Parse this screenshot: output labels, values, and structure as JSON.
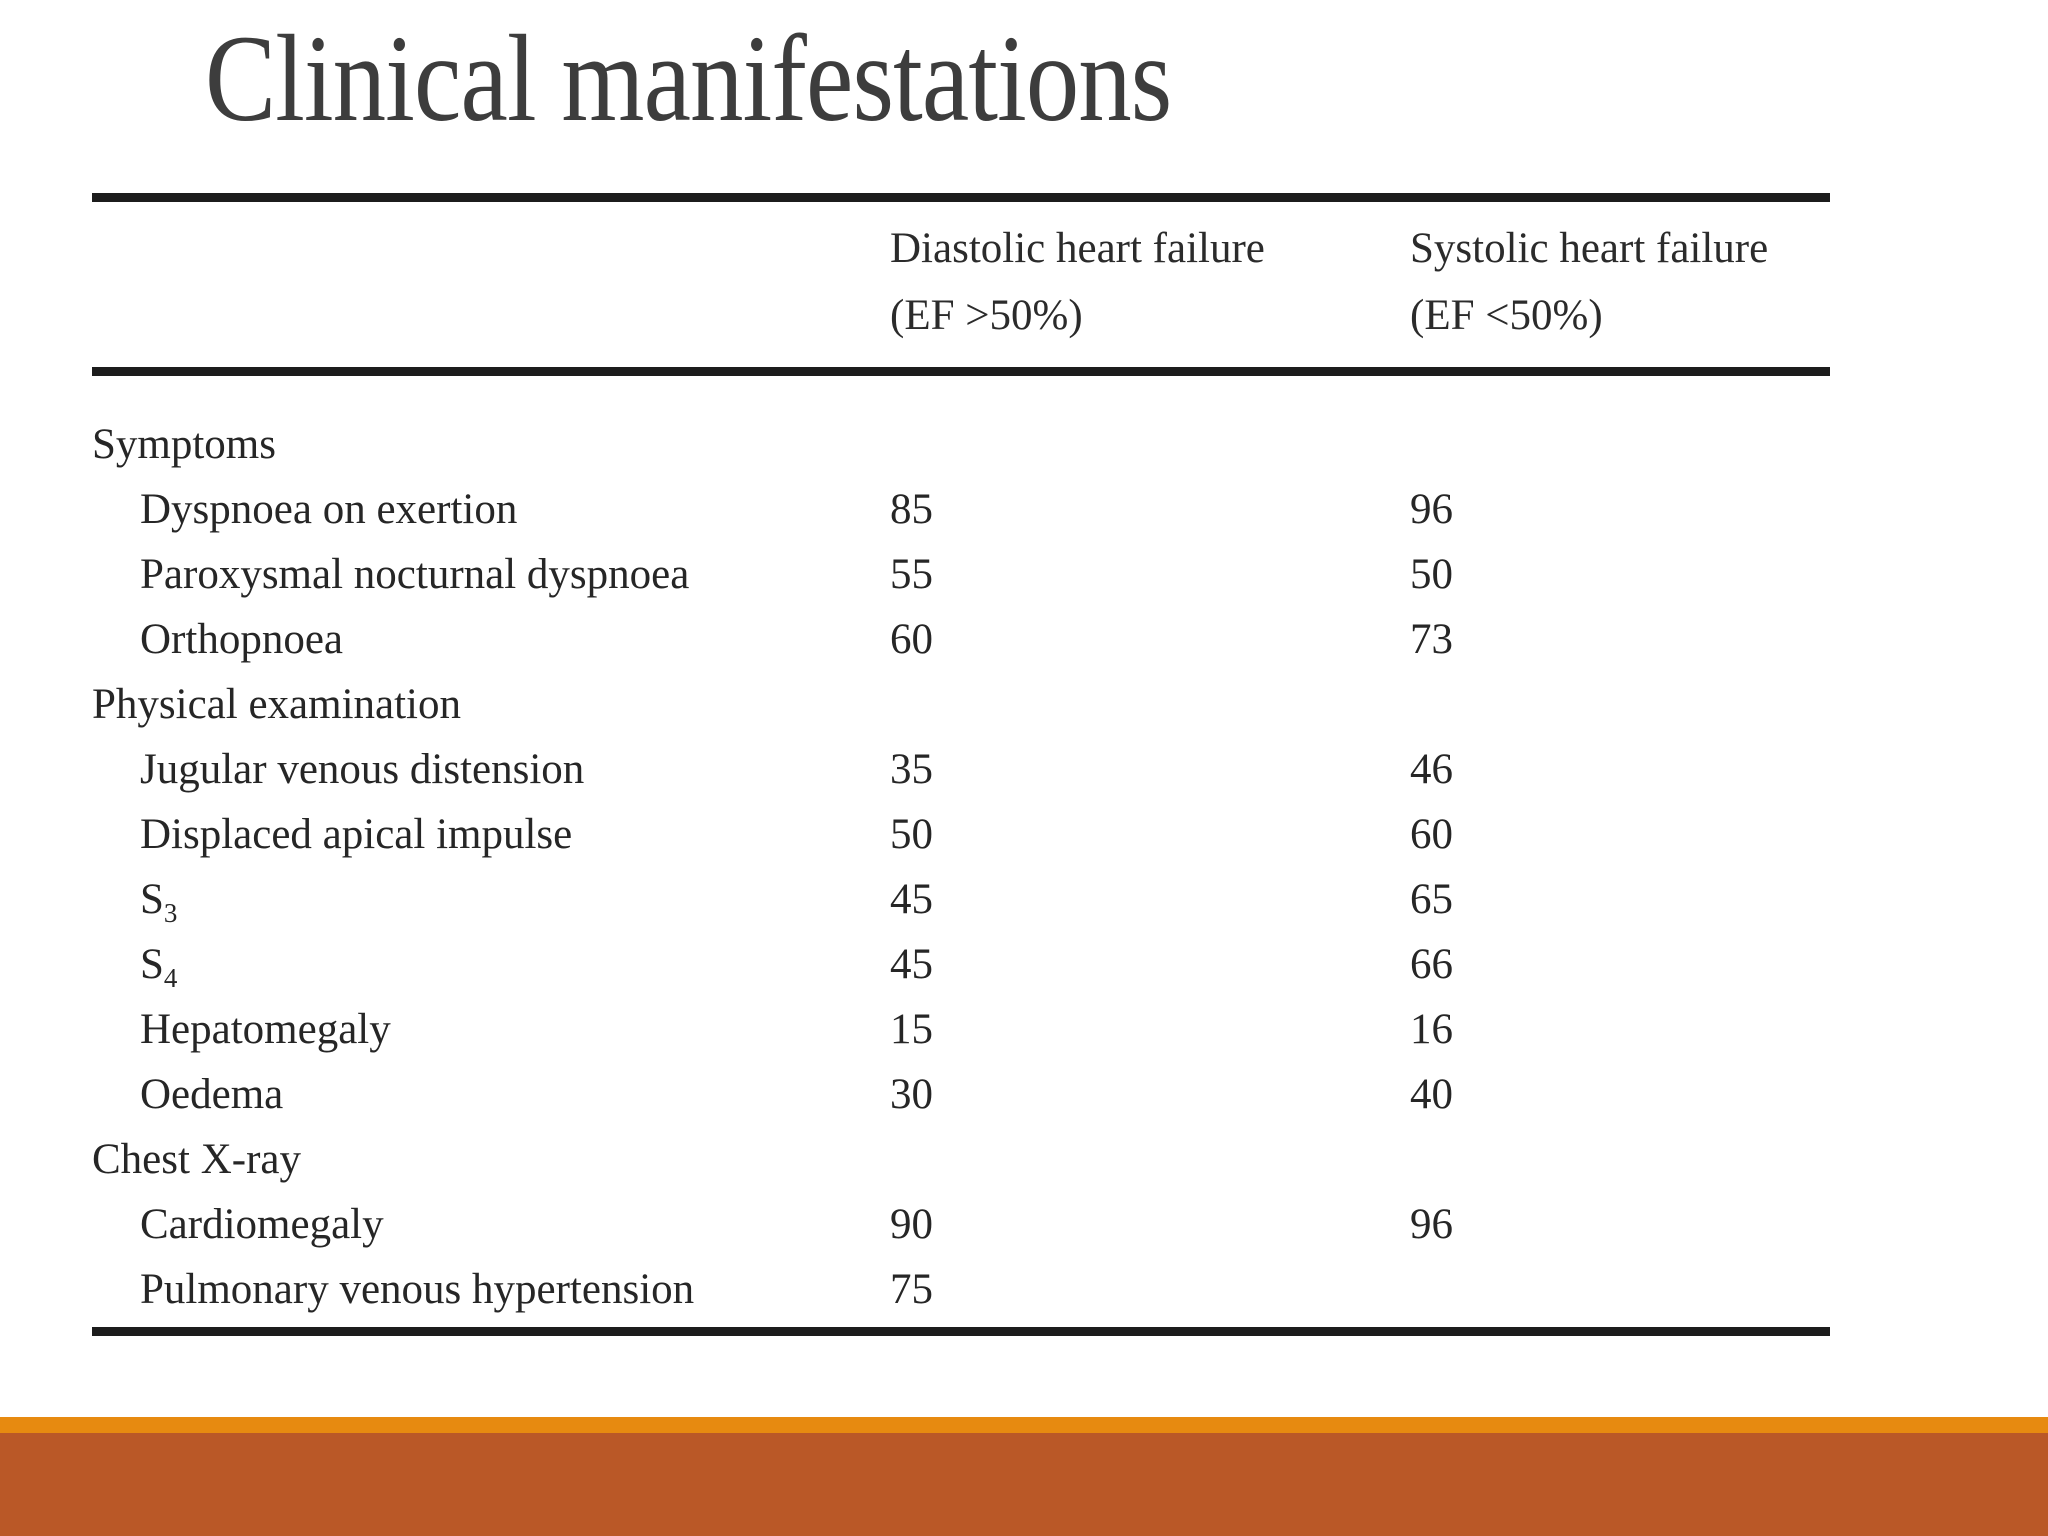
{
  "slide": {
    "title": "Clinical manifestations"
  },
  "table": {
    "column_headers": [
      {
        "line1": "Diastolic heart failure",
        "line2": "(EF >50%)"
      },
      {
        "line1": "Systolic heart failure",
        "line2": "(EF <50%)"
      }
    ],
    "sections": [
      {
        "header": "Symptoms",
        "rows": [
          {
            "label": "Dyspnoea on exertion",
            "diastolic": "85",
            "systolic": "96"
          },
          {
            "label": "Paroxysmal nocturnal dyspnoea",
            "diastolic": "55",
            "systolic": "50"
          },
          {
            "label": "Orthopnoea",
            "diastolic": "60",
            "systolic": "73"
          }
        ]
      },
      {
        "header": "Physical examination",
        "rows": [
          {
            "label": "Jugular venous distension",
            "diastolic": "35",
            "systolic": "46"
          },
          {
            "label": "Displaced apical impulse",
            "diastolic": "50",
            "systolic": "60"
          },
          {
            "label": "S",
            "subscript": "3",
            "diastolic": "45",
            "systolic": "65"
          },
          {
            "label": "S",
            "subscript": "4",
            "diastolic": "45",
            "systolic": "66"
          },
          {
            "label": "Hepatomegaly",
            "diastolic": "15",
            "systolic": "16"
          },
          {
            "label": "Oedema",
            "diastolic": "30",
            "systolic": "40"
          }
        ]
      },
      {
        "header": "Chest X-ray",
        "rows": [
          {
            "label": "Cardiomegaly",
            "diastolic": "90",
            "systolic": "96"
          },
          {
            "label": "Pulmonary venous hypertension",
            "diastolic": "75",
            "systolic": ""
          }
        ]
      }
    ]
  },
  "colors": {
    "rule": "#1c1c1c",
    "title_text": "#3d3d3d",
    "footer_stripe": "#E78A10",
    "footer_bar": "#BA5827"
  }
}
